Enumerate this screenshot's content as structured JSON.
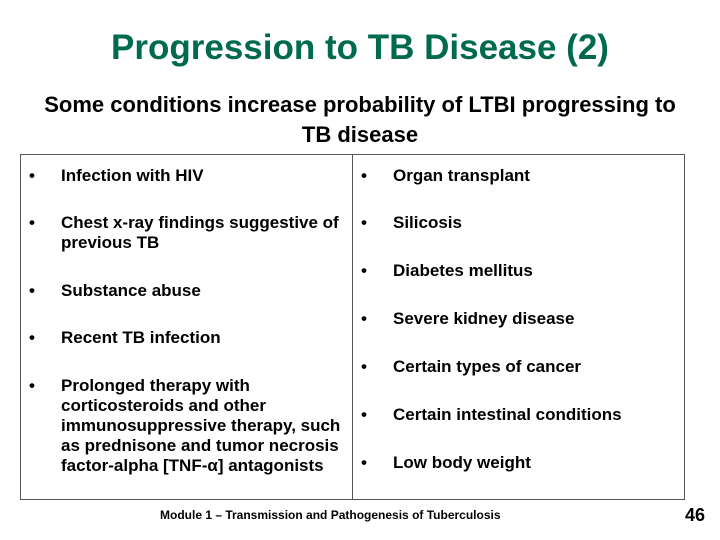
{
  "slide": {
    "title": "Progression to TB Disease (2)",
    "subtitle": "Some conditions increase probability of LTBI progressing to TB disease",
    "bullet": "•",
    "left_items": [
      "Infection with HIV",
      "Chest x-ray findings suggestive of previous TB",
      "Substance abuse",
      "Recent TB infection",
      "Prolonged therapy with corticosteroids and other immunosuppressive therapy, such as prednisone and tumor necrosis factor-alpha [TNF-α] antagonists"
    ],
    "right_items": [
      "Organ transplant",
      "Silicosis",
      "Diabetes mellitus",
      "Severe kidney disease",
      "Certain types of cancer",
      "Certain intestinal conditions",
      "Low body weight"
    ],
    "footer": "Module 1 – Transmission and Pathogenesis of Tuberculosis",
    "page_number": "46",
    "colors": {
      "title": "#006a4e",
      "text": "#000000",
      "border": "#555555"
    }
  }
}
